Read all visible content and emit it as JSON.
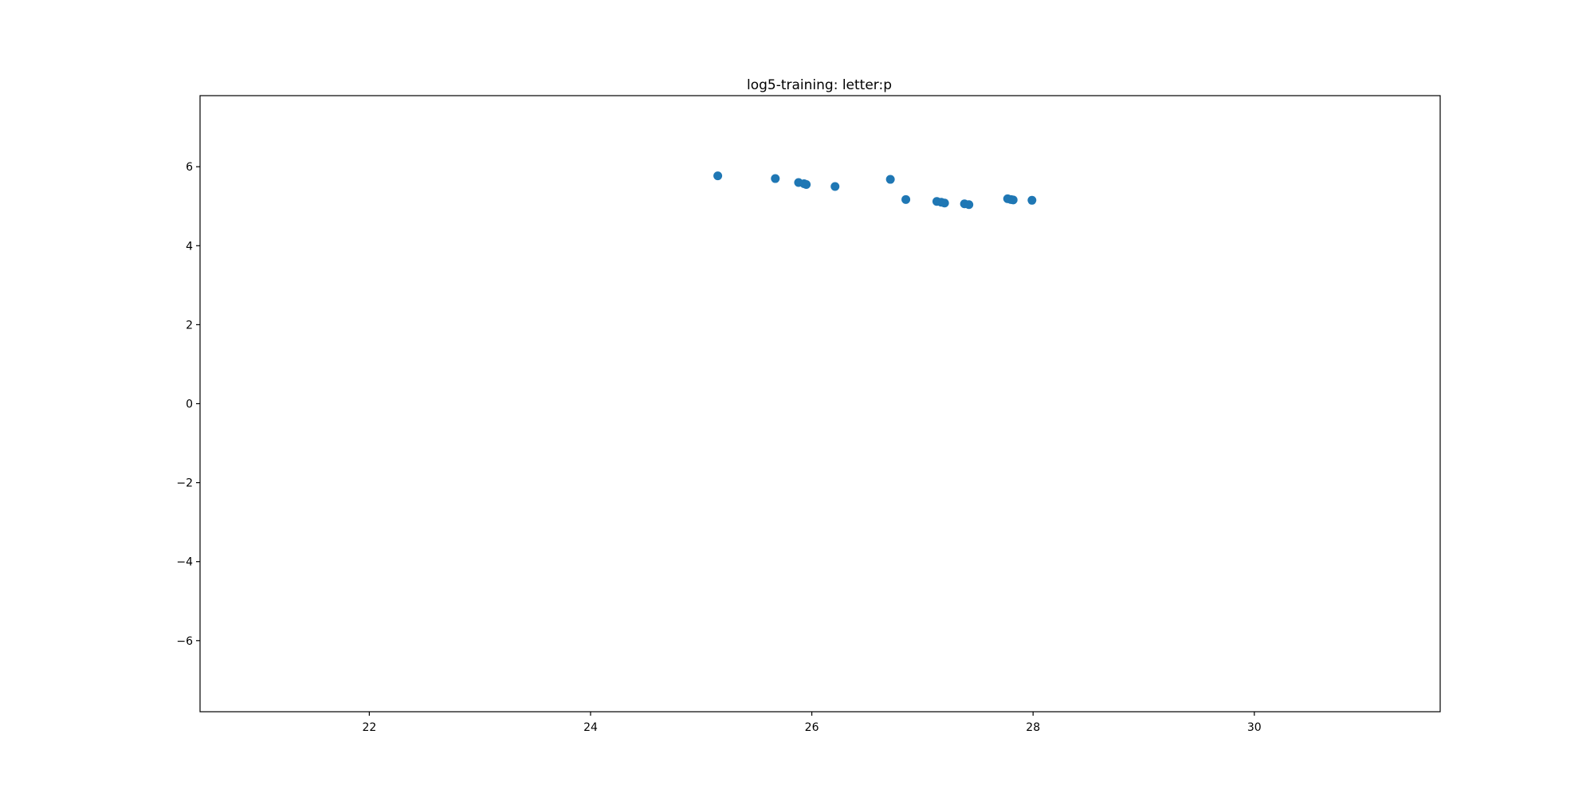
{
  "chart_data": {
    "type": "scatter",
    "title": "log5-training: letter:p",
    "xlabel": "",
    "ylabel": "",
    "xlim": [
      20.47,
      31.68
    ],
    "ylim": [
      -7.8,
      7.8
    ],
    "x_ticks": [
      22,
      24,
      26,
      28,
      30
    ],
    "y_ticks": [
      -6,
      -4,
      -2,
      0,
      2,
      4,
      6
    ],
    "x_tick_labels": [
      "22",
      "24",
      "26",
      "28",
      "30"
    ],
    "y_tick_labels": [
      "−6",
      "−4",
      "−2",
      "0",
      "2",
      "4",
      "6"
    ],
    "grid": false,
    "marker_color": "#1f77b4",
    "points": [
      {
        "x": 25.15,
        "y": 5.77
      },
      {
        "x": 25.67,
        "y": 5.7
      },
      {
        "x": 25.88,
        "y": 5.6
      },
      {
        "x": 25.93,
        "y": 5.57
      },
      {
        "x": 25.95,
        "y": 5.55
      },
      {
        "x": 26.21,
        "y": 5.5
      },
      {
        "x": 26.71,
        "y": 5.68
      },
      {
        "x": 26.85,
        "y": 5.17
      },
      {
        "x": 27.13,
        "y": 5.12
      },
      {
        "x": 27.17,
        "y": 5.1
      },
      {
        "x": 27.2,
        "y": 5.08
      },
      {
        "x": 27.38,
        "y": 5.06
      },
      {
        "x": 27.42,
        "y": 5.04
      },
      {
        "x": 27.77,
        "y": 5.19
      },
      {
        "x": 27.8,
        "y": 5.17
      },
      {
        "x": 27.82,
        "y": 5.16
      },
      {
        "x": 27.99,
        "y": 5.15
      }
    ]
  }
}
